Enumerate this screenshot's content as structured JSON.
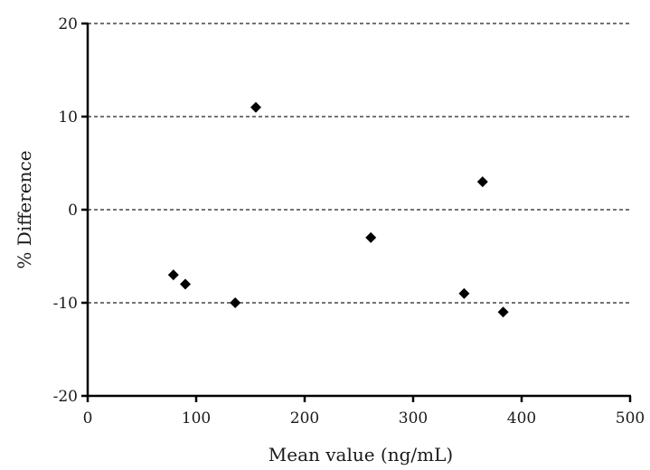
{
  "chart_data": {
    "type": "scatter",
    "title": "",
    "xlabel": "Mean value (ng/mL)",
    "ylabel": "% Difference",
    "xlim": [
      0,
      500
    ],
    "ylim": [
      -20,
      20
    ],
    "x_ticks": [
      "0",
      "100",
      "200",
      "300",
      "400",
      "500"
    ],
    "y_ticks": [
      "20",
      "10",
      "0",
      "-10",
      "-20"
    ],
    "grid": "horizontal dashed at y ticks",
    "legend": "none",
    "marker": "diamond",
    "marker_color": "#000000",
    "series": [
      {
        "x": [
          79,
          90,
          136,
          155,
          261,
          347,
          364,
          383
        ],
        "y": [
          -7,
          -8,
          -10,
          11,
          -3,
          -9,
          3,
          -11
        ]
      }
    ]
  }
}
